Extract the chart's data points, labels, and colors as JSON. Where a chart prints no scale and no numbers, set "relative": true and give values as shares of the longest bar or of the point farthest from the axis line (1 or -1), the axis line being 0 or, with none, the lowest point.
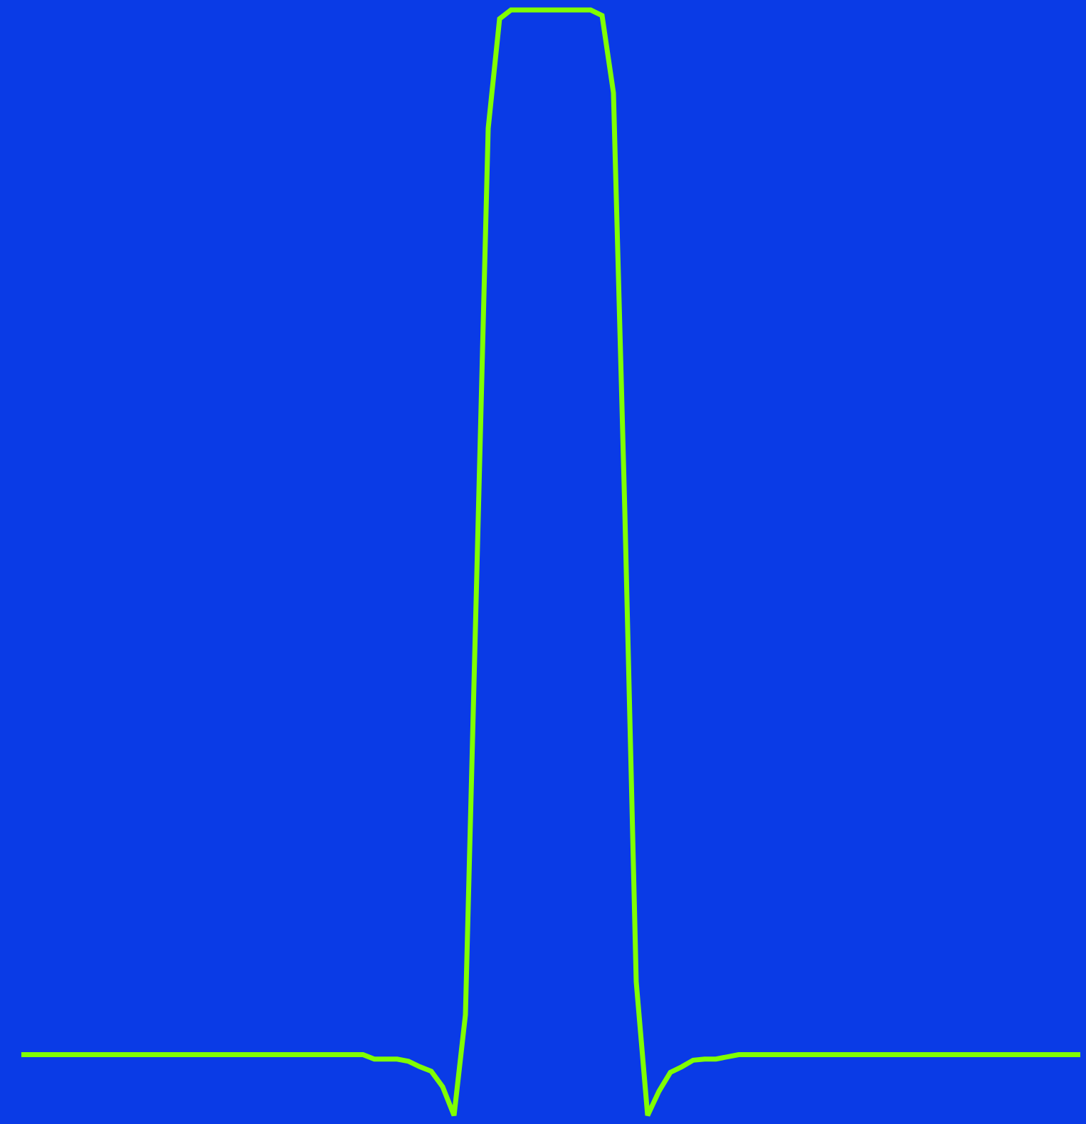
{
  "chart_data": {
    "type": "line",
    "relative": true,
    "grid": false,
    "marker": "none",
    "line_style": "solid",
    "categories": [
      null,
      null,
      null,
      null,
      null,
      null,
      null,
      null,
      null,
      null,
      null,
      null,
      null,
      null,
      null,
      null,
      null,
      null,
      null,
      null,
      null,
      null,
      null,
      null,
      null,
      null,
      null,
      null,
      null,
      null,
      null,
      null,
      null,
      null,
      null,
      null,
      null,
      null,
      null,
      null,
      null,
      null,
      null,
      null,
      null,
      null,
      null,
      null,
      null,
      null,
      null,
      null,
      null,
      null,
      null,
      null,
      null,
      null,
      null,
      null,
      null,
      null,
      null,
      null,
      null,
      null,
      null,
      null,
      null,
      null,
      null,
      null,
      null,
      null,
      null,
      null,
      null,
      null,
      null,
      null,
      null,
      null,
      null,
      null,
      null,
      null,
      null,
      null,
      null,
      null,
      null,
      null,
      null,
      null
    ],
    "series": [
      {
        "color": "#80ff00",
        "values": [
          0.055,
          0.055,
          0.055,
          0.055,
          0.055,
          0.055,
          0.055,
          0.055,
          0.055,
          0.055,
          0.055,
          0.055,
          0.055,
          0.055,
          0.055,
          0.055,
          0.055,
          0.055,
          0.055,
          0.055,
          0.055,
          0.055,
          0.055,
          0.055,
          0.055,
          0.055,
          0.055,
          0.055,
          0.055,
          0.055,
          0.055,
          0.051,
          0.051,
          0.051,
          0.049,
          0.044,
          0.04,
          0.026,
          0,
          0.091,
          0.49,
          0.893,
          0.992,
          1,
          1,
          1,
          1,
          1,
          1,
          1,
          1,
          0.995,
          0.925,
          0.546,
          0.121,
          0,
          0.022,
          0.039,
          0.044,
          0.05,
          0.051,
          0.051,
          0.053,
          0.055,
          0.055,
          0.055,
          0.055,
          0.055,
          0.055,
          0.055,
          0.055,
          0.055,
          0.055,
          0.055,
          0.055,
          0.055,
          0.055,
          0.055,
          0.055,
          0.055,
          0.055,
          0.055,
          0.055,
          0.055,
          0.055,
          0.055,
          0.055,
          0.055,
          0.055,
          0.055,
          0.055,
          0.055,
          0.055,
          0.055
        ]
      }
    ]
  }
}
